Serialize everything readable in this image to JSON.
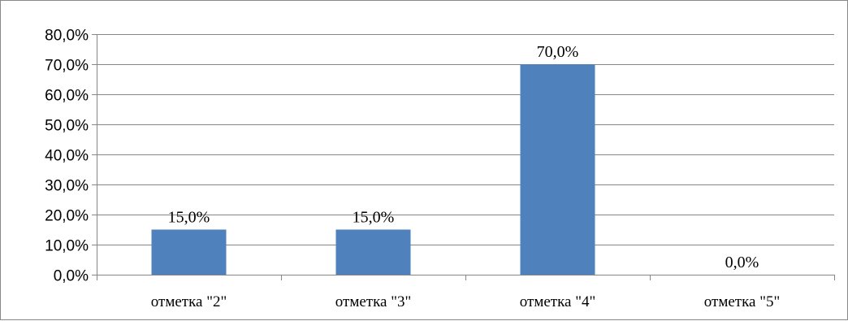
{
  "chart_data": {
    "type": "bar",
    "categories": [
      "отметка \"2\"",
      "отметка \"3\"",
      "отметка \"4\"",
      "отметка \"5\""
    ],
    "values": [
      15.0,
      15.0,
      70.0,
      0.0
    ],
    "data_labels": [
      "15,0%",
      "15,0%",
      "70,0%",
      "0,0%"
    ],
    "y_tick_values": [
      0,
      10,
      20,
      30,
      40,
      50,
      60,
      70,
      80
    ],
    "y_tick_labels": [
      "0,0%",
      "10,0%",
      "20,0%",
      "30,0%",
      "40,0%",
      "50,0%",
      "60,0%",
      "70,0%",
      "80,0%"
    ],
    "ylim": [
      0,
      80
    ],
    "title": "",
    "xlabel": "",
    "ylabel": "",
    "grid": true,
    "legend": "none",
    "bar_color": "#4F81BD",
    "grid_color": "#868686"
  }
}
